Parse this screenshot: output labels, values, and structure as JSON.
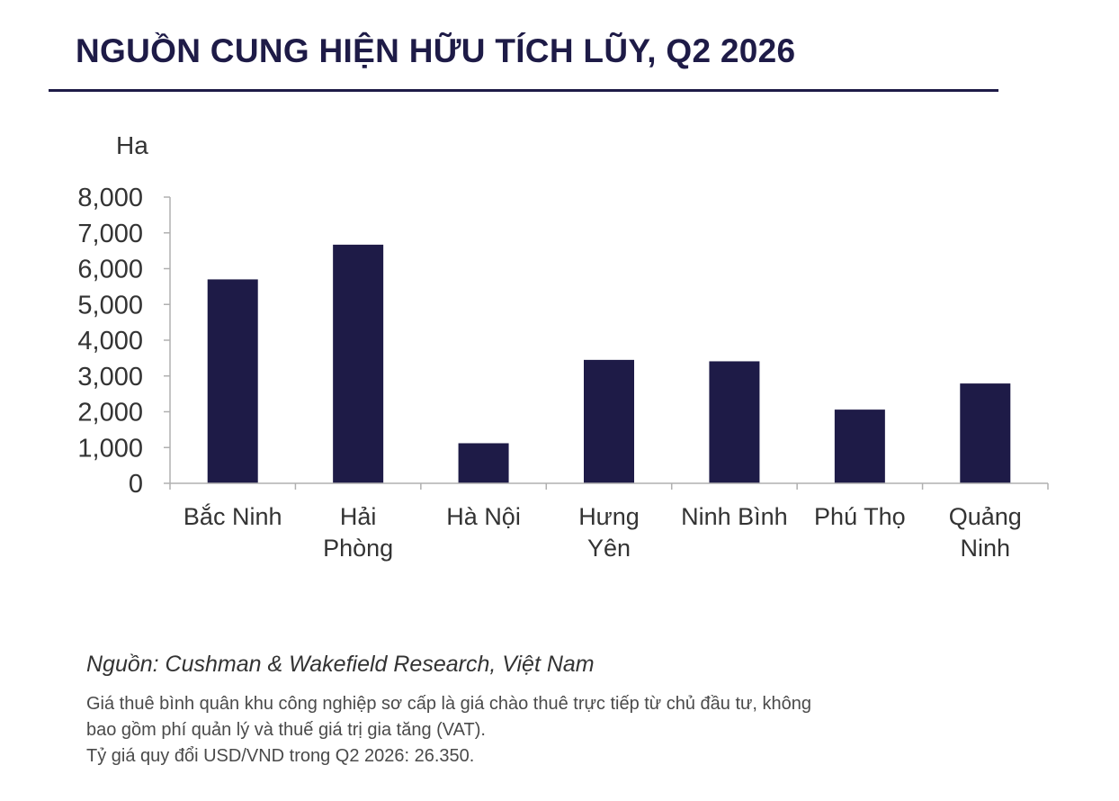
{
  "title": "NGUỒN CUNG HIỆN HỮU TÍCH LŨY, Q2 2026",
  "colors": {
    "bar": "#1e1b47",
    "title": "#1e1b47",
    "axis": "#b0b0b0",
    "text": "#333333"
  },
  "chart_data": {
    "type": "bar",
    "ylabel": "Ha",
    "xlabel": "",
    "categories": [
      "Bắc Ninh",
      "Hải Phòng",
      "Hà Nội",
      "Hưng Yên",
      "Ninh Bình",
      "Phú Thọ",
      "Quảng Ninh"
    ],
    "category_lines": [
      [
        "Bắc Ninh"
      ],
      [
        "Hải",
        "Phòng"
      ],
      [
        "Hà Nội"
      ],
      [
        "Hưng",
        "Yên"
      ],
      [
        "Ninh Bình"
      ],
      [
        "Phú Thọ"
      ],
      [
        "Quảng",
        "Ninh"
      ]
    ],
    "values": [
      5700,
      6670,
      1120,
      3450,
      3410,
      2060,
      2790
    ],
    "ylim": [
      0,
      8000
    ],
    "yticks": [
      "0",
      "1,000",
      "2,000",
      "3,000",
      "4,000",
      "5,000",
      "6,000",
      "7,000",
      "8,000"
    ],
    "legend": "none",
    "grid": false
  },
  "source": "Nguồn: Cushman & Wakefield Research, Việt Nam",
  "notes": [
    "Giá thuê bình quân khu công nghiệp sơ cấp là giá chào thuê trực tiếp từ chủ đầu tư, không",
    "bao gồm phí quản lý và thuế giá trị gia tăng (VAT).",
    "Tỷ giá quy đổi USD/VND trong Q2 2026: 26.350."
  ]
}
